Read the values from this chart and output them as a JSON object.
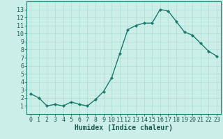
{
  "x": [
    0,
    1,
    2,
    3,
    4,
    5,
    6,
    7,
    8,
    9,
    10,
    11,
    12,
    13,
    14,
    15,
    16,
    17,
    18,
    19,
    20,
    21,
    22,
    23
  ],
  "y": [
    2.5,
    2.0,
    1.0,
    1.2,
    1.0,
    1.5,
    1.2,
    1.0,
    1.8,
    2.8,
    4.5,
    7.5,
    10.5,
    11.0,
    11.3,
    11.3,
    13.0,
    12.8,
    11.5,
    10.2,
    9.8,
    8.8,
    7.8,
    7.2
  ],
  "line_color": "#1a7a6e",
  "marker_color": "#1a7a6e",
  "bg_color": "#cceee8",
  "grid_color": "#aaddcc",
  "xlabel": "Humidex (Indice chaleur)",
  "ylim": [
    0,
    14
  ],
  "xlim": [
    -0.5,
    23.5
  ],
  "yticks": [
    1,
    2,
    3,
    4,
    5,
    6,
    7,
    8,
    9,
    10,
    11,
    12,
    13
  ],
  "xticks": [
    0,
    1,
    2,
    3,
    4,
    5,
    6,
    7,
    8,
    9,
    10,
    11,
    12,
    13,
    14,
    15,
    16,
    17,
    18,
    19,
    20,
    21,
    22,
    23
  ],
  "tick_fontsize": 6,
  "xlabel_fontsize": 7
}
